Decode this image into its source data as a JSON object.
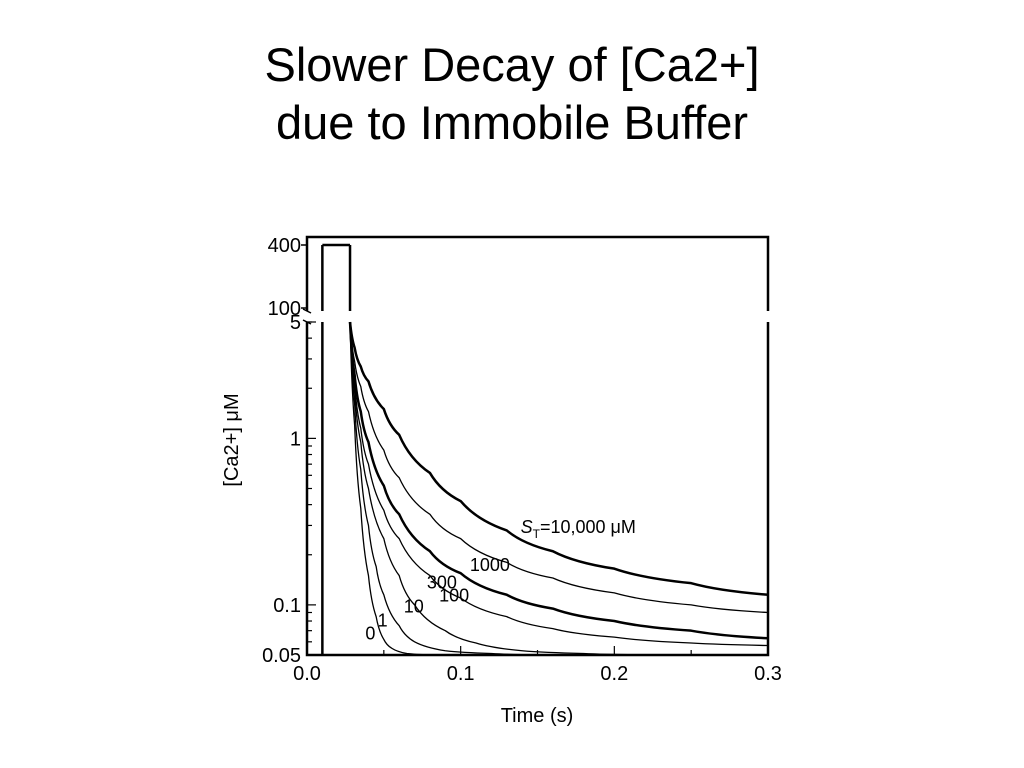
{
  "slide": {
    "title_line1": "Slower Decay of [Ca2+]",
    "title_line2": "due to Immobile Buffer"
  },
  "chart_data": {
    "type": "line",
    "xlabel": "Time  (s)",
    "ylabel": "[Ca2+]  μM",
    "x_ticks": [
      "0.0",
      "0.1",
      "0.2",
      "0.3"
    ],
    "y_ticks_lower": [
      "0.05",
      "0.1",
      "1",
      "5"
    ],
    "y_ticks_upper": [
      "100",
      "400"
    ],
    "xlim": [
      0,
      0.3
    ],
    "ylim_lower": [
      0.05,
      5
    ],
    "ylim_upper": [
      100,
      400
    ],
    "y_scale": "log",
    "stimulus": {
      "t_start": 0.01,
      "t_end": 0.028,
      "level": 400
    },
    "decay_start": {
      "t": 0.028,
      "ca": 5
    },
    "series_label_prefix": "S",
    "series_label_subscript": "T",
    "series": [
      {
        "label": "0",
        "bold": false,
        "points": [
          [
            0.028,
            5
          ],
          [
            0.031,
            1.2
          ],
          [
            0.035,
            0.38
          ],
          [
            0.04,
            0.15
          ],
          [
            0.045,
            0.085
          ],
          [
            0.05,
            0.062
          ],
          [
            0.055,
            0.055
          ],
          [
            0.065,
            0.051
          ],
          [
            0.08,
            0.05
          ]
        ]
      },
      {
        "label": "1",
        "bold": false,
        "points": [
          [
            0.028,
            5
          ],
          [
            0.031,
            1.6
          ],
          [
            0.035,
            0.65
          ],
          [
            0.04,
            0.3
          ],
          [
            0.045,
            0.17
          ],
          [
            0.05,
            0.115
          ],
          [
            0.06,
            0.075
          ],
          [
            0.07,
            0.06
          ],
          [
            0.09,
            0.053
          ],
          [
            0.12,
            0.051
          ],
          [
            0.15,
            0.05
          ]
        ]
      },
      {
        "label": "10",
        "bold": false,
        "points": [
          [
            0.028,
            5
          ],
          [
            0.031,
            1.9
          ],
          [
            0.035,
            0.95
          ],
          [
            0.04,
            0.5
          ],
          [
            0.05,
            0.25
          ],
          [
            0.06,
            0.15
          ],
          [
            0.07,
            0.1
          ],
          [
            0.09,
            0.07
          ],
          [
            0.11,
            0.059
          ],
          [
            0.14,
            0.053
          ],
          [
            0.18,
            0.051
          ],
          [
            0.22,
            0.05
          ]
        ]
      },
      {
        "label": "100",
        "bold": false,
        "points": [
          [
            0.028,
            5
          ],
          [
            0.031,
            2.1
          ],
          [
            0.035,
            1.15
          ],
          [
            0.04,
            0.7
          ],
          [
            0.05,
            0.37
          ],
          [
            0.06,
            0.25
          ],
          [
            0.08,
            0.15
          ],
          [
            0.1,
            0.11
          ],
          [
            0.13,
            0.085
          ],
          [
            0.16,
            0.072
          ],
          [
            0.2,
            0.064
          ],
          [
            0.25,
            0.059
          ],
          [
            0.3,
            0.057
          ]
        ]
      },
      {
        "label": "300",
        "bold": true,
        "points": [
          [
            0.028,
            5
          ],
          [
            0.031,
            2.4
          ],
          [
            0.035,
            1.45
          ],
          [
            0.04,
            0.95
          ],
          [
            0.05,
            0.52
          ],
          [
            0.06,
            0.35
          ],
          [
            0.08,
            0.21
          ],
          [
            0.1,
            0.155
          ],
          [
            0.13,
            0.115
          ],
          [
            0.16,
            0.095
          ],
          [
            0.2,
            0.08
          ],
          [
            0.25,
            0.07
          ],
          [
            0.3,
            0.063
          ]
        ]
      },
      {
        "label": "1000",
        "bold": false,
        "points": [
          [
            0.028,
            5
          ],
          [
            0.031,
            2.9
          ],
          [
            0.035,
            2.05
          ],
          [
            0.04,
            1.45
          ],
          [
            0.05,
            0.85
          ],
          [
            0.06,
            0.58
          ],
          [
            0.08,
            0.35
          ],
          [
            0.1,
            0.25
          ],
          [
            0.13,
            0.18
          ],
          [
            0.16,
            0.145
          ],
          [
            0.2,
            0.118
          ],
          [
            0.25,
            0.1
          ],
          [
            0.3,
            0.09
          ]
        ]
      },
      {
        "label": "=10,000 μM",
        "bold": true,
        "points": [
          [
            0.028,
            5
          ],
          [
            0.031,
            3.5
          ],
          [
            0.035,
            2.7
          ],
          [
            0.04,
            2.2
          ],
          [
            0.05,
            1.5
          ],
          [
            0.06,
            1.05
          ],
          [
            0.08,
            0.62
          ],
          [
            0.1,
            0.42
          ],
          [
            0.13,
            0.28
          ],
          [
            0.16,
            0.21
          ],
          [
            0.2,
            0.165
          ],
          [
            0.25,
            0.135
          ],
          [
            0.3,
            0.115
          ]
        ]
      }
    ]
  }
}
